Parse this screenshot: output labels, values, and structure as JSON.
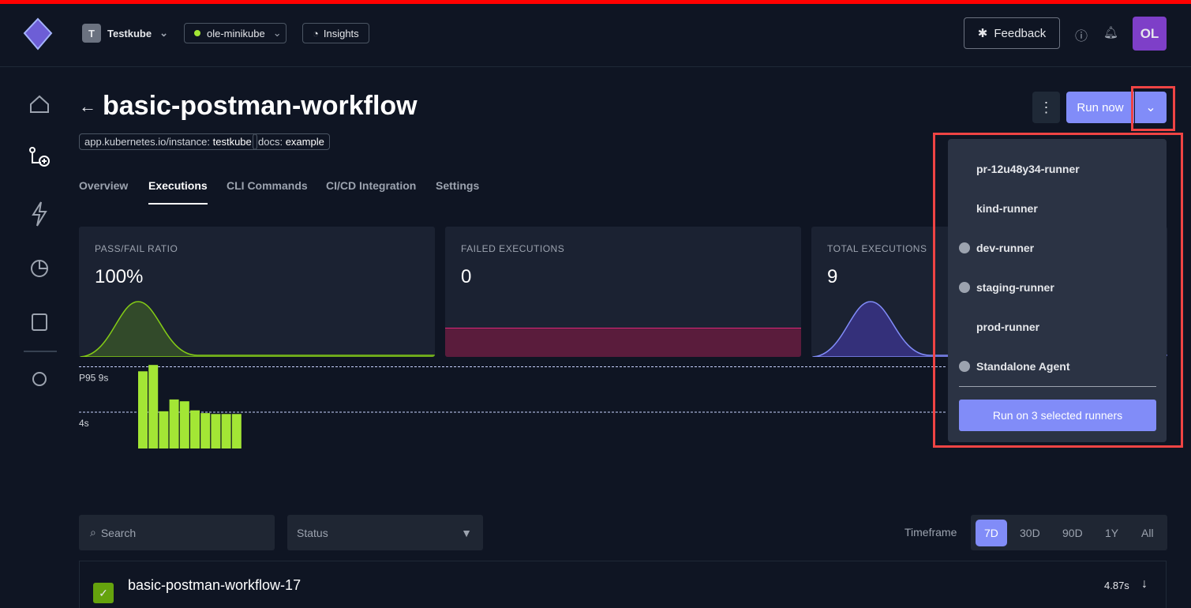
{
  "header": {
    "org_initial": "T",
    "org": "Testkube",
    "environment": "ole-minikube",
    "insights": "Insights",
    "feedback": "Feedback",
    "avatar": "OL"
  },
  "page": {
    "title": "basic-postman-workflow",
    "labels": [
      {
        "key": "app.kubernetes.io/instance:",
        "value": "testkube"
      },
      {
        "key": "docs:",
        "value": "example"
      }
    ],
    "run_now": "Run now"
  },
  "tabs": [
    {
      "label": "Overview",
      "active": false
    },
    {
      "label": "Executions",
      "active": true
    },
    {
      "label": "CLI Commands",
      "active": false
    },
    {
      "label": "CI/CD Integration",
      "active": false
    },
    {
      "label": "Settings",
      "active": false
    }
  ],
  "metrics": [
    {
      "label": "PASS/FAIL RATIO",
      "value": "100%"
    },
    {
      "label": "FAILED EXECUTIONS",
      "value": "0"
    },
    {
      "label": "TOTAL EXECUTIONS",
      "value": "9"
    }
  ],
  "duration_chart": {
    "reference_lines": [
      {
        "value": 9,
        "label": "P95 9s"
      },
      {
        "value": 4,
        "label": "4s"
      }
    ],
    "bars": [
      8.5,
      9.2,
      4.1,
      5.4,
      5.2,
      4.2,
      3.9,
      3.8,
      3.8,
      3.8
    ]
  },
  "runner_menu": {
    "runners": [
      {
        "name": "pr-12u48y34-runner",
        "selected": false
      },
      {
        "name": "kind-runner",
        "selected": false
      },
      {
        "name": "dev-runner",
        "selected": true
      },
      {
        "name": "staging-runner",
        "selected": true
      },
      {
        "name": "prod-runner",
        "selected": false
      },
      {
        "name": "Standalone Agent",
        "selected": true
      }
    ],
    "action": "Run on 3 selected runners"
  },
  "filters": {
    "search": "Search",
    "status": "Status",
    "timeframe_label": "Timeframe",
    "timeframes": [
      {
        "label": "7D",
        "active": true
      },
      {
        "label": "30D",
        "active": false
      },
      {
        "label": "90D",
        "active": false
      },
      {
        "label": "1Y",
        "active": false
      },
      {
        "label": "All",
        "active": false
      }
    ]
  },
  "executions": [
    {
      "name": "basic-postman-workflow-17",
      "duration": "4.87s"
    }
  ]
}
